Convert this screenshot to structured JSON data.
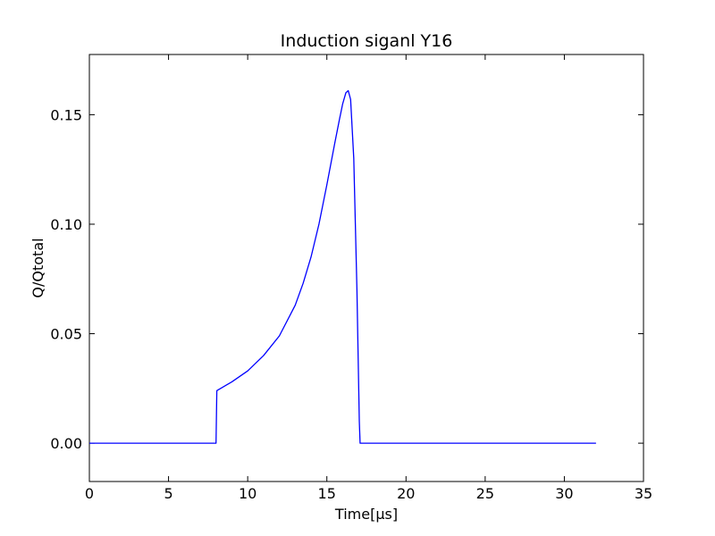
{
  "chart_data": {
    "type": "line",
    "title": "Induction siganl Y16",
    "xlabel": "Time[μs]",
    "ylabel": "Q/Qtotal",
    "xlim": [
      0,
      35
    ],
    "ylim": [
      -0.0175,
      0.1775
    ],
    "xticks": [
      0,
      5,
      10,
      15,
      20,
      25,
      30,
      35
    ],
    "xtick_labels": [
      "0",
      "5",
      "10",
      "15",
      "20",
      "25",
      "30",
      "35"
    ],
    "yticks": [
      0.0,
      0.05,
      0.1,
      0.15
    ],
    "ytick_labels": [
      "0.00",
      "0.05",
      "0.10",
      "0.15"
    ],
    "grid": false,
    "series": [
      {
        "color": "#0000ff",
        "x": [
          0,
          7.9,
          8.0,
          8.05,
          9,
          10,
          11,
          12,
          13,
          13.5,
          14,
          14.5,
          15,
          15.5,
          15.8,
          16.0,
          16.2,
          16.35,
          16.5,
          16.7,
          16.9,
          17.05,
          17.1,
          20,
          25,
          32
        ],
        "y": [
          0,
          0,
          0.0,
          0.024,
          0.028,
          0.033,
          0.04,
          0.049,
          0.063,
          0.073,
          0.085,
          0.1,
          0.118,
          0.137,
          0.148,
          0.155,
          0.16,
          0.161,
          0.157,
          0.13,
          0.07,
          0.01,
          0.0,
          0.0,
          0.0,
          0.0
        ]
      }
    ]
  }
}
